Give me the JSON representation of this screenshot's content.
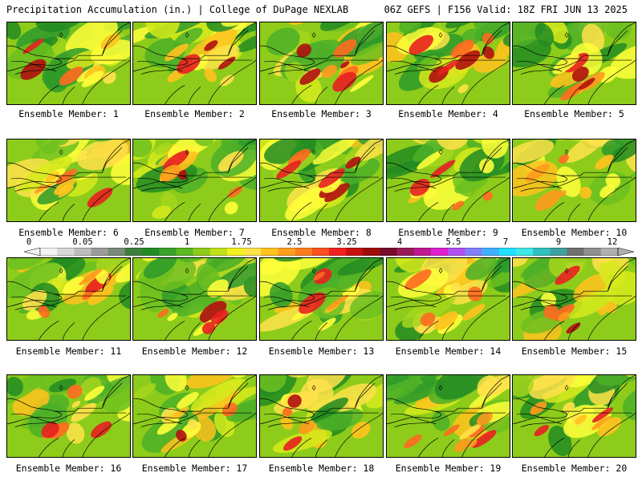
{
  "header": {
    "left_title": "Precipitation Accumulation (in.) | College of DuPage NEXLAB",
    "right_title": "06Z GEFS | F156 Valid: 18Z FRI JUN 13 2025"
  },
  "members": [
    {
      "caption": "Ensemble Member: 1"
    },
    {
      "caption": "Ensemble Member: 2"
    },
    {
      "caption": "Ensemble Member: 3"
    },
    {
      "caption": "Ensemble Member: 4"
    },
    {
      "caption": "Ensemble Member: 5"
    },
    {
      "caption": "Ensemble Member: 6"
    },
    {
      "caption": "Ensemble Member: 7"
    },
    {
      "caption": "Ensemble Member: 8"
    },
    {
      "caption": "Ensemble Member: 9"
    },
    {
      "caption": "Ensemble Member: 10"
    },
    {
      "caption": "Ensemble Member: 11"
    },
    {
      "caption": "Ensemble Member: 12"
    },
    {
      "caption": "Ensemble Member: 13"
    },
    {
      "caption": "Ensemble Member: 14"
    },
    {
      "caption": "Ensemble Member: 15"
    },
    {
      "caption": "Ensemble Member: 16"
    },
    {
      "caption": "Ensemble Member: 17"
    },
    {
      "caption": "Ensemble Member: 18"
    },
    {
      "caption": "Ensemble Member: 19"
    },
    {
      "caption": "Ensemble Member: 20"
    }
  ],
  "colorbar": {
    "labels": [
      "0",
      "0.05",
      "0.25",
      "1",
      "1.75",
      "2.5",
      "3.25",
      "4",
      "5.5",
      "7",
      "9",
      "12"
    ],
    "colors": [
      "#f2f2f2",
      "#d8d8d8",
      "#bdbdbd",
      "#9c9c9c",
      "#7a8a7a",
      "#3c7f3c",
      "#228b22",
      "#3aa12a",
      "#5ab820",
      "#8dcc1a",
      "#c2e01a",
      "#f0f01e",
      "#ffe24a",
      "#ffc21e",
      "#ffa020",
      "#ff7f1e",
      "#ff5020",
      "#f02020",
      "#c81010",
      "#a00a0a",
      "#780a2a",
      "#9a1a5a",
      "#c01890",
      "#e020d0",
      "#b050f0",
      "#8080ff",
      "#40b0ff",
      "#20e0ff",
      "#40e8e8",
      "#30c0c0",
      "#40a0a0",
      "#707070",
      "#909090",
      "#b0b0b0"
    ]
  }
}
